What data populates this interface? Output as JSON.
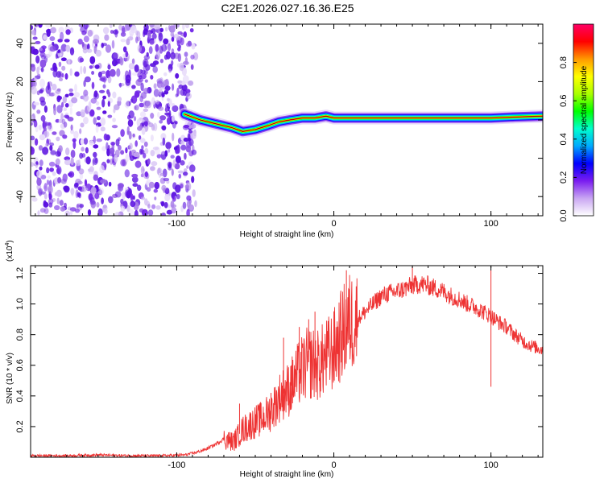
{
  "chart_data": [
    {
      "type": "heatmap",
      "title": "C2E1.2026.027.16.36.E25",
      "xlabel": "Height of straight line (km)",
      "ylabel": "Frequency (Hz)",
      "xlim": [
        -193,
        133
      ],
      "ylim": [
        -50,
        50
      ],
      "x_ticks": [
        -100,
        0,
        100
      ],
      "y_ticks": [
        -40,
        -20,
        0,
        20,
        40
      ],
      "x_tick_labels": [
        "-100",
        "0",
        "100"
      ],
      "y_tick_labels": [
        "-40",
        "-20",
        "0",
        "20",
        "40"
      ],
      "noise_region_x": [
        -193,
        -95
      ],
      "ridge": {
        "x": [
          -95,
          -85,
          -75,
          -65,
          -58,
          -50,
          -42,
          -35,
          -28,
          -20,
          -12,
          -5,
          0,
          5,
          20,
          40,
          60,
          80,
          100,
          115,
          133
        ],
        "frequency": [
          3,
          0,
          -2,
          -4,
          -6,
          -5,
          -3,
          -1,
          0,
          1,
          1,
          2,
          1,
          1,
          1,
          1,
          1,
          1,
          1,
          1.5,
          2
        ]
      },
      "colorbar": {
        "label": "Normalized spectral amplitude",
        "range": [
          0,
          1
        ],
        "ticks": [
          "0.0",
          "0.2",
          "0.4",
          "0.6",
          "0.8"
        ],
        "tick_values": [
          0.0,
          0.2,
          0.4,
          0.6,
          0.8
        ],
        "colors": [
          "#ffffff",
          "#c9a6f2",
          "#7a1cf0",
          "#0000ff",
          "#00aaff",
          "#00ffcc",
          "#00ff00",
          "#aaff00",
          "#ffff00",
          "#ff9900",
          "#ff0000",
          "#ff0066"
        ]
      }
    },
    {
      "type": "line",
      "title": "",
      "xlabel": "Height of straight line (km)",
      "ylabel": "SNR (10 * v/v)",
      "y_multiplier": "(x10",
      "y_multiplier_exp": "4",
      "y_multiplier_close": ")",
      "xlim": [
        -193,
        133
      ],
      "ylim": [
        0,
        1.25
      ],
      "x_ticks": [
        -100,
        0,
        100
      ],
      "y_ticks": [
        0.2,
        0.4,
        0.6,
        0.8,
        1.0,
        1.2
      ],
      "x_tick_labels": [
        "-100",
        "0",
        "100"
      ],
      "y_tick_labels": [
        "0.2",
        "0.4",
        "0.6",
        "0.8",
        "1.0",
        "1.2"
      ],
      "color": "#ee3333",
      "series": [
        {
          "name": "SNR",
          "x": [
            -193,
            -170,
            -150,
            -130,
            -110,
            -95,
            -88,
            -82,
            -76,
            -70,
            -64,
            -58,
            -52,
            -46,
            -40,
            -34,
            -28,
            -22,
            -16,
            -10,
            -5,
            0,
            5,
            10,
            15,
            20,
            25,
            30,
            35,
            40,
            45,
            50,
            55,
            60,
            65,
            70,
            75,
            80,
            85,
            90,
            95,
            100,
            105,
            110,
            115,
            120,
            125,
            133
          ],
          "y": [
            0.01,
            0.01,
            0.015,
            0.01,
            0.01,
            0.015,
            0.03,
            0.05,
            0.08,
            0.12,
            0.1,
            0.18,
            0.22,
            0.25,
            0.3,
            0.4,
            0.45,
            0.55,
            0.62,
            0.6,
            0.65,
            0.7,
            0.8,
            0.88,
            0.9,
            0.95,
            1.0,
            1.05,
            1.07,
            1.08,
            1.1,
            1.12,
            1.13,
            1.12,
            1.1,
            1.08,
            1.05,
            1.03,
            1.0,
            0.98,
            0.95,
            0.92,
            0.88,
            0.85,
            0.8,
            0.76,
            0.73,
            0.7
          ]
        }
      ],
      "spikes": {
        "x": [
          -60,
          -40,
          -32,
          -27,
          -22,
          -16,
          -12,
          8,
          50,
          100
        ],
        "y": [
          0.35,
          0.42,
          0.78,
          0.6,
          0.85,
          0.9,
          0.95,
          1.22,
          1.25,
          1.22
        ]
      }
    }
  ]
}
